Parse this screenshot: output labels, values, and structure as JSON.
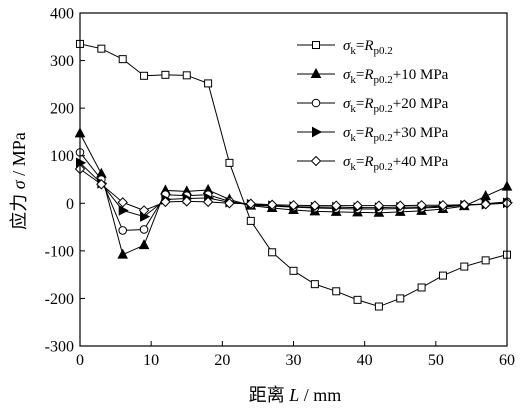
{
  "chart_data": {
    "type": "line",
    "title": "",
    "xlabel": {
      "prefix": "距离",
      "var": "L",
      "unit": " / mm"
    },
    "ylabel": {
      "prefix": "应力",
      "var": "σ",
      "unit": " / MPa"
    },
    "xlim": [
      0,
      60
    ],
    "ylim": [
      -300,
      400
    ],
    "xticks": [
      0,
      10,
      20,
      30,
      40,
      50,
      60
    ],
    "yticks": [
      -300,
      -200,
      -100,
      0,
      100,
      200,
      300,
      400
    ],
    "grid": false,
    "legend_position": "top-right",
    "series": [
      {
        "name": "σk=Rp0.2",
        "legend": {
          "sub": "k",
          "rhs": "R",
          "rhs_sub": "p0.2",
          "suffix": ""
        },
        "marker": "square-open",
        "x": [
          0,
          3,
          6,
          9,
          12,
          15,
          18,
          21,
          24,
          27,
          30,
          33,
          36,
          39,
          42,
          45,
          48,
          51,
          54,
          57,
          60
        ],
        "y": [
          335,
          325,
          303,
          268,
          270,
          269,
          252,
          85,
          -37,
          -103,
          -142,
          -170,
          -185,
          -203,
          -217,
          -200,
          -177,
          -152,
          -133,
          -120,
          -108
        ]
      },
      {
        "name": "σk=Rp0.2+10 MPa",
        "legend": {
          "sub": "k",
          "rhs": "R",
          "rhs_sub": "p0.2",
          "suffix": "+10 MPa"
        },
        "marker": "triangle-filled",
        "x": [
          0,
          3,
          6,
          9,
          12,
          15,
          18,
          21,
          24,
          27,
          30,
          33,
          36,
          39,
          42,
          45,
          48,
          51,
          54,
          57,
          60
        ],
        "y": [
          147,
          62,
          -108,
          -88,
          27,
          25,
          28,
          8,
          -5,
          -10,
          -14,
          -17,
          -18,
          -19,
          -20,
          -18,
          -16,
          -12,
          -6,
          15,
          35
        ]
      },
      {
        "name": "σk=Rp0.2+20 MPa",
        "legend": {
          "sub": "k",
          "rhs": "R",
          "rhs_sub": "p0.2",
          "suffix": "+20 MPa"
        },
        "marker": "circle-open",
        "x": [
          0,
          3,
          6,
          9,
          12,
          15,
          18,
          21,
          24,
          27,
          30,
          33,
          36,
          39,
          42,
          45,
          48,
          51,
          54,
          57,
          60
        ],
        "y": [
          107,
          50,
          -57,
          -55,
          18,
          16,
          18,
          4,
          -4,
          -6,
          -8,
          -10,
          -11,
          -12,
          -12,
          -11,
          -10,
          -8,
          -4,
          -1,
          3
        ]
      },
      {
        "name": "σk=Rp0.2+30 MPa",
        "legend": {
          "sub": "k",
          "rhs": "R",
          "rhs_sub": "p0.2",
          "suffix": "+30 MPa"
        },
        "marker": "triangle-right-filled",
        "x": [
          0,
          3,
          6,
          9,
          12,
          15,
          18,
          21,
          24,
          27,
          30,
          33,
          36,
          39,
          42,
          45,
          48,
          51,
          54,
          57,
          60
        ],
        "y": [
          85,
          42,
          -15,
          -28,
          8,
          10,
          11,
          2,
          -2,
          -5,
          -7,
          -8,
          -8,
          -9,
          -9,
          -8,
          -8,
          -6,
          -4,
          -2,
          1
        ]
      },
      {
        "name": "σk=Rp0.2+40 MPa",
        "legend": {
          "sub": "k",
          "rhs": "R",
          "rhs_sub": "p0.2",
          "suffix": "+40 MPa"
        },
        "marker": "diamond-open",
        "x": [
          0,
          3,
          6,
          9,
          12,
          15,
          18,
          21,
          24,
          27,
          30,
          33,
          36,
          39,
          42,
          45,
          48,
          51,
          54,
          57,
          60
        ],
        "y": [
          72,
          40,
          2,
          -15,
          3,
          4,
          3,
          0,
          -1,
          -3,
          -4,
          -5,
          -5,
          -5,
          -5,
          -5,
          -4,
          -4,
          -3,
          -2,
          0
        ]
      }
    ]
  }
}
